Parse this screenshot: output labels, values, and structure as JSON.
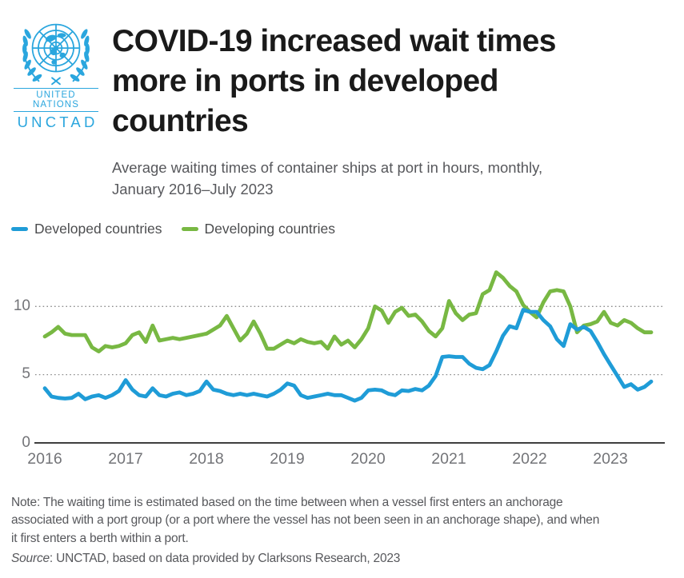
{
  "logo": {
    "org": "UNITED NATIONS",
    "acronym": "UNCTAD",
    "color": "#2aa6de"
  },
  "header": {
    "title": "COVID-19 increased wait times\nmore in ports in developed\ncountries",
    "subtitle": "Average waiting times of container ships at port in hours, monthly,\nJanuary 2016–July 2023"
  },
  "footer": {
    "note": "Note: The waiting time is estimated based on the time between when a vessel first enters an anchorage\nassociated with a port group (or a port where the vessel has not been seen in an anchorage shape), and when\nit first enters a berth within a port.",
    "source_label": "Source",
    "source_text": ": UNCTAD, based on data provided by Clarksons Research, 2023"
  },
  "chart_data": {
    "type": "line",
    "title": "COVID-19 increased wait times more in ports in developed countries",
    "subtitle": "Average waiting times of container ships at port in hours, monthly, January 2016–July 2023",
    "unit": "hours",
    "x_interval": "monthly",
    "x_start": "2016-01",
    "x_end": "2023-07",
    "x_tick_labels": [
      "2016",
      "2017",
      "2018",
      "2019",
      "2020",
      "2021",
      "2022",
      "2023"
    ],
    "y_ticks": [
      "10",
      "5",
      "0"
    ],
    "ylim": [
      0,
      13.3
    ],
    "grid": "horizontal dotted lines at 5 and 10",
    "legend_position": "top-left",
    "series": [
      {
        "name": "Developed countries",
        "color": "#1f9cd7",
        "values": [
          4.0,
          3.4,
          3.3,
          3.25,
          3.3,
          3.6,
          3.2,
          3.4,
          3.5,
          3.3,
          3.5,
          3.8,
          4.6,
          3.9,
          3.5,
          3.4,
          4.0,
          3.5,
          3.4,
          3.6,
          3.7,
          3.5,
          3.6,
          3.8,
          4.5,
          3.9,
          3.8,
          3.6,
          3.5,
          3.6,
          3.5,
          3.6,
          3.5,
          3.4,
          3.6,
          3.9,
          4.35,
          4.2,
          3.5,
          3.3,
          3.4,
          3.5,
          3.6,
          3.5,
          3.5,
          3.3,
          3.1,
          3.3,
          3.85,
          3.9,
          3.85,
          3.6,
          3.5,
          3.85,
          3.8,
          3.95,
          3.85,
          4.2,
          4.9,
          6.3,
          6.35,
          6.3,
          6.3,
          5.8,
          5.5,
          5.4,
          5.7,
          6.7,
          7.85,
          8.55,
          8.4,
          9.75,
          9.6,
          9.6,
          9.0,
          8.55,
          7.6,
          7.1,
          8.7,
          8.3,
          8.5,
          8.2,
          7.4,
          6.5,
          5.7,
          4.9,
          4.1,
          4.3,
          3.9,
          4.1,
          4.5
        ]
      },
      {
        "name": "Developing countries",
        "color": "#78b843",
        "values": [
          7.8,
          8.1,
          8.5,
          8.0,
          7.9,
          7.9,
          7.9,
          7.0,
          6.7,
          7.1,
          7.0,
          7.1,
          7.3,
          7.9,
          8.1,
          7.4,
          8.6,
          7.5,
          7.6,
          7.7,
          7.6,
          7.7,
          7.8,
          7.9,
          8.0,
          8.3,
          8.6,
          9.3,
          8.4,
          7.5,
          8.0,
          8.9,
          8.0,
          6.9,
          6.9,
          7.2,
          7.5,
          7.3,
          7.6,
          7.4,
          7.3,
          7.4,
          6.9,
          7.8,
          7.2,
          7.5,
          7.0,
          7.6,
          8.4,
          10.0,
          9.7,
          8.8,
          9.6,
          9.9,
          9.3,
          9.4,
          8.9,
          8.2,
          7.8,
          8.4,
          10.4,
          9.5,
          9.0,
          9.4,
          9.5,
          10.9,
          11.2,
          12.5,
          12.1,
          11.5,
          11.1,
          10.1,
          9.6,
          9.2,
          10.3,
          11.1,
          11.2,
          11.1,
          10.0,
          8.1,
          8.6,
          8.7,
          8.9,
          9.6,
          8.8,
          8.6,
          9.0,
          8.8,
          8.4,
          8.1,
          8.1
        ]
      }
    ]
  }
}
